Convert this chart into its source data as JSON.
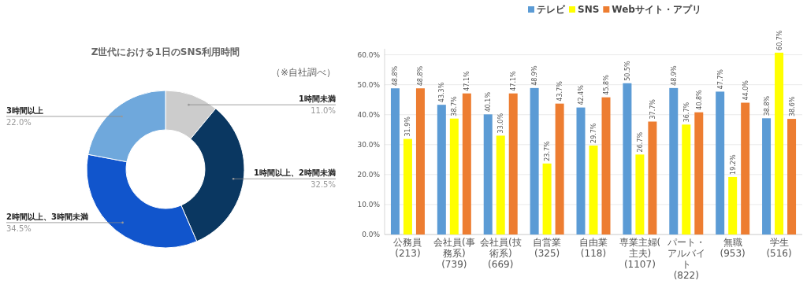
{
  "chart_data": [
    {
      "type": "donut",
      "title": "Z世代における1日のSNS利用時間",
      "annotations": [
        "（※自社調べ）"
      ],
      "categories": [
        "1時間未満",
        "1時間以上、2時間未満",
        "2時間以上、3時間未満",
        "3時間以上"
      ],
      "values": [
        11.0,
        32.5,
        34.5,
        22.0
      ],
      "value_labels": [
        "11.0%",
        "32.5%",
        "34.5%",
        "22.0%"
      ],
      "colors": [
        "#cccccc",
        "#0a3761",
        "#1155cc",
        "#6fa8dc"
      ]
    },
    {
      "type": "bar",
      "legend": "top",
      "grid": "y",
      "categories": [
        "公務員\n(213)",
        "会社員(事務系)\n(739)",
        "会社員(技術系)\n(669)",
        "自営業\n(325)",
        "自由業\n(118)",
        "専業主婦(主夫)\n(1107)",
        "パート・アルバイト\n(822)",
        "無職\n(953)",
        "学生\n(516)"
      ],
      "ylim": [
        0,
        62
      ],
      "yticks": [
        {
          "value": 0,
          "label": "0.0%"
        },
        {
          "value": 10,
          "label": "10.0%"
        },
        {
          "value": 20,
          "label": "20.0%"
        },
        {
          "value": 30,
          "label": "30.0%"
        },
        {
          "value": 40,
          "label": "40.0%"
        },
        {
          "value": 50,
          "label": "50.0%"
        },
        {
          "value": 60,
          "label": "60.0%"
        }
      ],
      "series": [
        {
          "name": "テレビ",
          "color": "#5b9bd5",
          "values": [
            48.8,
            43.3,
            40.1,
            48.9,
            42.4,
            50.5,
            48.9,
            47.7,
            38.8
          ],
          "value_labels": [
            "48.8%",
            "43.3%",
            "40.1%",
            "48.9%",
            "42.4%",
            "50.5%",
            "48.9%",
            "47.7%",
            "38.8%"
          ]
        },
        {
          "name": "SNS",
          "color": "#ffff00",
          "values": [
            31.9,
            38.7,
            33.0,
            23.7,
            29.7,
            26.7,
            36.7,
            19.2,
            60.7
          ],
          "value_labels": [
            "31.9%",
            "38.7%",
            "33.0%",
            "23.7%",
            "29.7%",
            "26.7%",
            "36.7%",
            "19.2%",
            "60.7%"
          ]
        },
        {
          "name": "Webサイト・アプリ",
          "color": "#ed7d31",
          "values": [
            48.8,
            47.1,
            47.1,
            43.7,
            45.8,
            37.7,
            40.8,
            44.0,
            38.6
          ],
          "value_labels": [
            "48.8%",
            "47.1%",
            "47.1%",
            "43.7%",
            "45.8%",
            "37.7%",
            "40.8%",
            "44.0%",
            "38.6%"
          ]
        }
      ]
    }
  ]
}
